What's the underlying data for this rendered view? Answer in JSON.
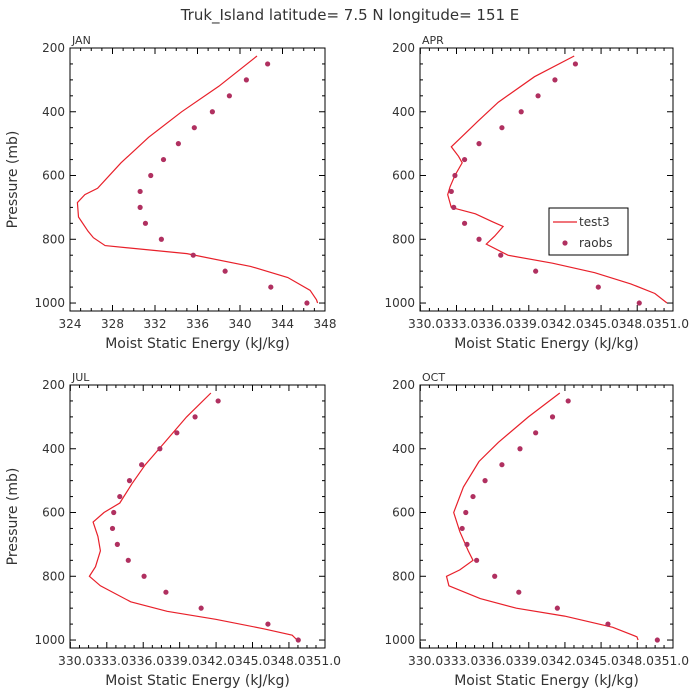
{
  "title": "Truk_Island  latitude= 7.5 N longitude= 151 E",
  "colors": {
    "model": "#e8202a",
    "obs": "#b03060",
    "axis": "#000000",
    "text": "#333333"
  },
  "legend": {
    "model_label": "test3",
    "obs_label": "raobs"
  },
  "chart_data": [
    {
      "type": "line",
      "panel": "JAN",
      "xlabel": "Moist Static Energy (kJ/kg)",
      "ylabel": "Pressure (mb)",
      "xlim": [
        324,
        348
      ],
      "ylim": [
        1025,
        200
      ],
      "xticks": [
        324,
        328,
        332,
        336,
        340,
        344,
        348
      ],
      "xtick_labels": [
        "324",
        "328",
        "332",
        "336",
        "340",
        "344",
        "348"
      ],
      "yticks": [
        200,
        400,
        600,
        800,
        1000
      ],
      "series": [
        {
          "name": "test3",
          "style": "line",
          "points": [
            [
              341.6,
              225
            ],
            [
              338,
              320
            ],
            [
              334.5,
              400
            ],
            [
              331.4,
              480
            ],
            [
              328.8,
              560
            ],
            [
              326.6,
              640
            ],
            [
              325.4,
              660
            ],
            [
              324.7,
              685
            ],
            [
              324.8,
              730
            ],
            [
              325.7,
              775
            ],
            [
              326.2,
              795
            ],
            [
              327.3,
              820
            ],
            [
              335,
              845
            ],
            [
              341,
              885
            ],
            [
              344.5,
              920
            ],
            [
              346.6,
              960
            ],
            [
              347.2,
              990
            ],
            [
              347.3,
              1000
            ]
          ]
        },
        {
          "name": "raobs",
          "style": "points",
          "points": [
            [
              342.6,
              250
            ],
            [
              340.6,
              300
            ],
            [
              339,
              350
            ],
            [
              337.4,
              400
            ],
            [
              335.7,
              450
            ],
            [
              334.2,
              500
            ],
            [
              332.8,
              550
            ],
            [
              331.6,
              600
            ],
            [
              330.6,
              650
            ],
            [
              330.6,
              700
            ],
            [
              331.1,
              750
            ],
            [
              332.6,
              800
            ],
            [
              335.6,
              850
            ],
            [
              338.6,
              900
            ],
            [
              342.9,
              950
            ],
            [
              346.3,
              1000
            ]
          ]
        }
      ]
    },
    {
      "type": "line",
      "panel": "APR",
      "xlabel": "Moist Static Energy (kJ/kg)",
      "ylabel": "Pressure (mb)",
      "xlim": [
        330.0,
        351.0
      ],
      "ylim": [
        1025,
        200
      ],
      "xticks": [
        330.03,
        333.03,
        336.03,
        339.03,
        342.03,
        345.03,
        348.03,
        351.0
      ],
      "xtick_labels": [
        "330.0",
        "333.0",
        "336.0",
        "339.0",
        "342.0",
        "345.0",
        "348.0",
        "351.0"
      ],
      "xtick_strip": "330.0333.0336.0339.0342.0345.0348.0351.0",
      "yticks": [
        200,
        400,
        600,
        800,
        1000
      ],
      "series": [
        {
          "name": "test3",
          "style": "line",
          "points": [
            [
              342.8,
              225
            ],
            [
              339.5,
              290
            ],
            [
              336.5,
              370
            ],
            [
              334.8,
              430
            ],
            [
              333.7,
              470
            ],
            [
              332.6,
              510
            ],
            [
              333.2,
              540
            ],
            [
              333.5,
              560
            ],
            [
              332.9,
              600
            ],
            [
              332.5,
              635
            ],
            [
              332.3,
              660
            ],
            [
              332.6,
              700
            ],
            [
              334.6,
              720
            ],
            [
              336,
              745
            ],
            [
              336.9,
              760
            ],
            [
              336.2,
              790
            ],
            [
              335.5,
              815
            ],
            [
              337.3,
              850
            ],
            [
              341,
              875
            ],
            [
              344.5,
              905
            ],
            [
              347.5,
              940
            ],
            [
              349.5,
              970
            ],
            [
              350.5,
              1000
            ]
          ]
        },
        {
          "name": "raobs",
          "style": "points",
          "points": [
            [
              342.9,
              250
            ],
            [
              341.2,
              300
            ],
            [
              339.8,
              350
            ],
            [
              338.4,
              400
            ],
            [
              336.8,
              450
            ],
            [
              334.9,
              500
            ],
            [
              333.7,
              550
            ],
            [
              332.9,
              600
            ],
            [
              332.6,
              650
            ],
            [
              332.8,
              700
            ],
            [
              333.7,
              750
            ],
            [
              334.9,
              800
            ],
            [
              336.7,
              850
            ],
            [
              339.6,
              900
            ],
            [
              344.8,
              950
            ],
            [
              348.2,
              1000
            ]
          ]
        }
      ]
    },
    {
      "type": "line",
      "panel": "JUL",
      "xlabel": "Moist Static Energy (kJ/kg)",
      "ylabel": "Pressure (mb)",
      "xlim": [
        330.0,
        351.0
      ],
      "ylim": [
        1025,
        200
      ],
      "xticks": [
        330.03,
        333.03,
        336.03,
        339.03,
        342.03,
        345.03,
        348.03,
        351.0
      ],
      "xtick_labels": [
        "330.0",
        "333.0",
        "336.0",
        "339.0",
        "342.0",
        "345.0",
        "348.0",
        "351.0"
      ],
      "xtick_strip": "330.0333.0336.0339.0342.0345.0348.0351.0",
      "yticks": [
        200,
        400,
        600,
        800,
        1000
      ],
      "series": [
        {
          "name": "test3",
          "style": "line",
          "points": [
            [
              341.6,
              225
            ],
            [
              339.6,
              300
            ],
            [
              337.8,
              380
            ],
            [
              336.2,
              450
            ],
            [
              335.1,
              510
            ],
            [
              334.1,
              570
            ],
            [
              332.8,
              600
            ],
            [
              331.9,
              630
            ],
            [
              332.3,
              675
            ],
            [
              332.5,
              720
            ],
            [
              332.1,
              770
            ],
            [
              331.6,
              800
            ],
            [
              332.5,
              830
            ],
            [
              335,
              880
            ],
            [
              338,
              910
            ],
            [
              342,
              935
            ],
            [
              346,
              965
            ],
            [
              348.3,
              985
            ],
            [
              348.7,
              1000
            ]
          ]
        },
        {
          "name": "raobs",
          "style": "points",
          "points": [
            [
              342.2,
              250
            ],
            [
              340.3,
              300
            ],
            [
              338.8,
              350
            ],
            [
              337.4,
              400
            ],
            [
              335.9,
              450
            ],
            [
              334.9,
              500
            ],
            [
              334.1,
              550
            ],
            [
              333.6,
              600
            ],
            [
              333.5,
              650
            ],
            [
              333.9,
              700
            ],
            [
              334.8,
              750
            ],
            [
              336.1,
              800
            ],
            [
              337.9,
              850
            ],
            [
              340.8,
              900
            ],
            [
              346.3,
              950
            ],
            [
              348.8,
              1000
            ]
          ]
        }
      ]
    },
    {
      "type": "line",
      "panel": "OCT",
      "xlabel": "Moist Static Energy (kJ/kg)",
      "ylabel": "Pressure (mb)",
      "xlim": [
        330.0,
        351.0
      ],
      "ylim": [
        1025,
        200
      ],
      "xticks": [
        330.03,
        333.03,
        336.03,
        339.03,
        342.03,
        345.03,
        348.03,
        351.0
      ],
      "xtick_labels": [
        "330.0",
        "333.0",
        "336.0",
        "339.0",
        "342.0",
        "345.0",
        "348.0",
        "351.0"
      ],
      "xtick_strip": "330.0333.0336.0339.0342.0345.0348.0351.0",
      "yticks": [
        200,
        400,
        600,
        800,
        1000
      ],
      "series": [
        {
          "name": "test3",
          "style": "line",
          "points": [
            [
              341.6,
              225
            ],
            [
              339,
              300
            ],
            [
              336.5,
              380
            ],
            [
              334.9,
              440
            ],
            [
              333.6,
              520
            ],
            [
              332.8,
              600
            ],
            [
              333.3,
              660
            ],
            [
              334,
              720
            ],
            [
              334.4,
              750
            ],
            [
              333.3,
              780
            ],
            [
              332.2,
              800
            ],
            [
              332.4,
              830
            ],
            [
              335,
              870
            ],
            [
              338,
              900
            ],
            [
              342,
              925
            ],
            [
              346,
              960
            ],
            [
              348,
              990
            ],
            [
              348.1,
              1000
            ]
          ]
        },
        {
          "name": "raobs",
          "style": "points",
          "points": [
            [
              342.3,
              250
            ],
            [
              341,
              300
            ],
            [
              339.6,
              350
            ],
            [
              338.3,
              400
            ],
            [
              336.8,
              450
            ],
            [
              335.4,
              500
            ],
            [
              334.4,
              550
            ],
            [
              333.8,
              600
            ],
            [
              333.5,
              650
            ],
            [
              333.9,
              700
            ],
            [
              334.7,
              750
            ],
            [
              336.2,
              800
            ],
            [
              338.2,
              850
            ],
            [
              341.4,
              900
            ],
            [
              345.6,
              950
            ],
            [
              349.7,
              1000
            ]
          ]
        }
      ]
    }
  ]
}
